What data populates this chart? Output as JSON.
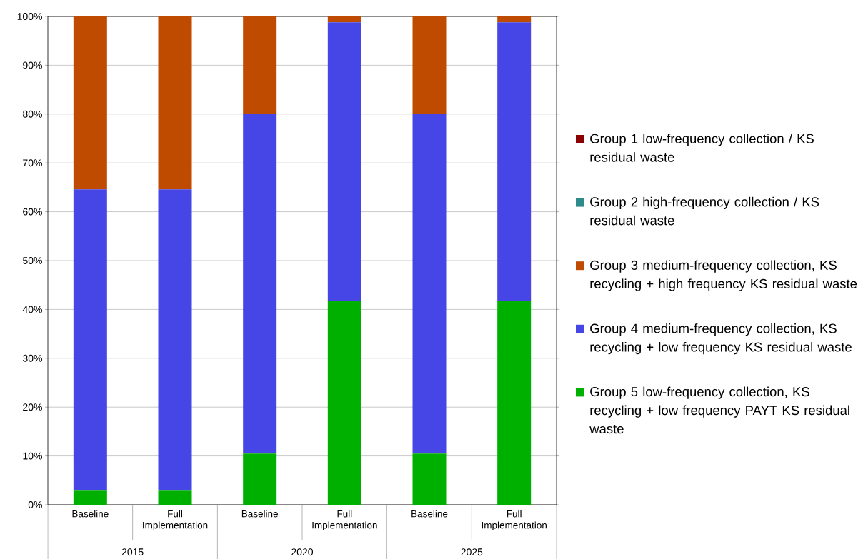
{
  "chart_data": {
    "type": "bar",
    "stacked": true,
    "categories": [
      "Baseline",
      "Full Implementation",
      "Baseline",
      "Full Implementation",
      "Baseline",
      "Full Implementation"
    ],
    "series": [
      {
        "name": "Group 5 low-frequency collection, KS recycling + low frequency PAYT KS residual waste",
        "color": "#00b000",
        "values": [
          2.9,
          2.9,
          10.5,
          41.7,
          10.5,
          41.7
        ]
      },
      {
        "name": "Group 4 medium-frequency collection, KS recycling + low frequency KS residual waste",
        "color": "#4646e6",
        "values": [
          61.7,
          61.7,
          69.5,
          57.1,
          69.5,
          57.1
        ]
      },
      {
        "name": "Group 3 medium-frequency collection, KS recycling + high frequency KS residual waste",
        "color": "#bf4b00",
        "values": [
          35.4,
          35.4,
          20.0,
          1.2,
          20.0,
          1.2
        ]
      },
      {
        "name": "Group 2 high-frequency collection / KS residual waste",
        "color": "#2e8b8b",
        "values": [
          0,
          0,
          0,
          0,
          0,
          0
        ]
      },
      {
        "name": "Group 1 low-frequency collection / KS residual waste",
        "color": "#8b0000",
        "values": [
          0,
          0,
          0,
          0,
          0,
          0
        ]
      }
    ],
    "ylim": [
      0,
      100
    ],
    "yticks": [
      {
        "value": 0,
        "label": "0%"
      },
      {
        "value": 10,
        "label": "10%"
      },
      {
        "value": 20,
        "label": "20%"
      },
      {
        "value": 30,
        "label": "30%"
      },
      {
        "value": 40,
        "label": "40%"
      },
      {
        "value": 50,
        "label": "50%"
      },
      {
        "value": 60,
        "label": "60%"
      },
      {
        "value": 70,
        "label": "70%"
      },
      {
        "value": 80,
        "label": "80%"
      },
      {
        "value": 90,
        "label": "90%"
      },
      {
        "value": 100,
        "label": "100%"
      }
    ],
    "grid": "y",
    "legend": "right",
    "annotations": [
      "2015",
      "2020",
      "2025"
    ]
  }
}
